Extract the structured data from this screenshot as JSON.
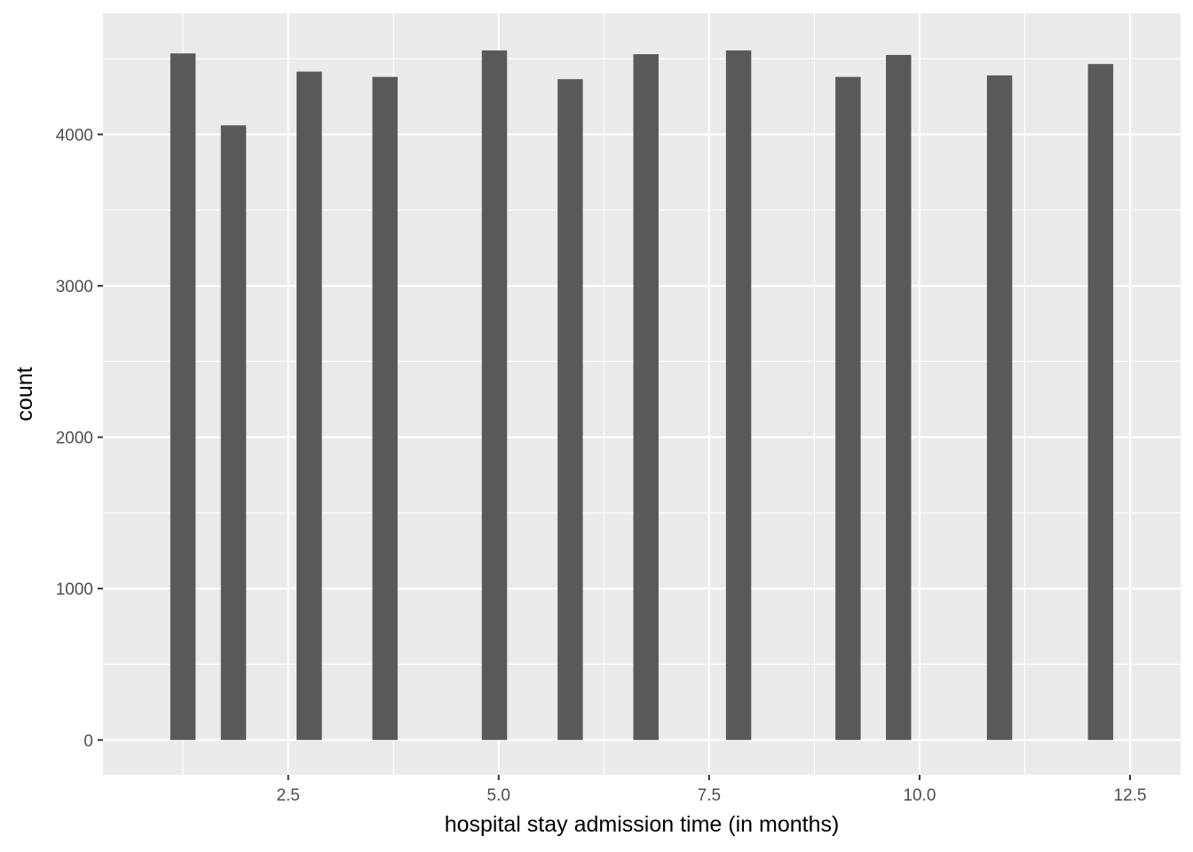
{
  "chart_data": {
    "type": "bar",
    "xlabel": "hospital stay admission time (in months)",
    "ylabel": "count",
    "x": [
      1.25,
      1.85,
      2.75,
      3.65,
      4.95,
      5.85,
      6.75,
      7.85,
      9.15,
      9.75,
      10.95,
      12.15
    ],
    "values": [
      4535,
      4060,
      4415,
      4380,
      4555,
      4365,
      4530,
      4555,
      4380,
      4525,
      4390,
      4465
    ],
    "bar_width": 0.3,
    "xlim": [
      0.3,
      13.1
    ],
    "ylim": [
      -230,
      4800
    ],
    "x_ticks": [
      2.5,
      5.0,
      7.5,
      10.0,
      12.5
    ],
    "x_tick_labels": [
      "2.5",
      "5.0",
      "7.5",
      "10.0",
      "12.5"
    ],
    "y_ticks": [
      0,
      1000,
      2000,
      3000,
      4000
    ],
    "y_tick_labels": [
      "0",
      "1000",
      "2000",
      "3000",
      "4000"
    ],
    "grid": true,
    "colors": {
      "bar": "#595959",
      "panel": "#ebebeb",
      "grid": "#ffffff",
      "tick": "#333333"
    }
  }
}
